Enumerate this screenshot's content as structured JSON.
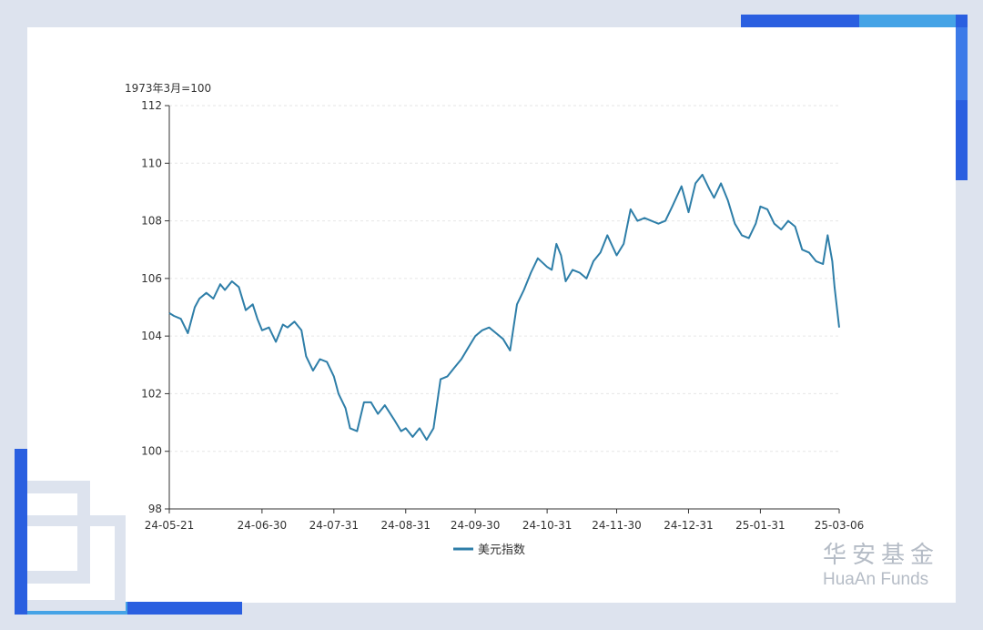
{
  "chart_data": {
    "type": "line",
    "ylabel": "1973年3月=100",
    "ylim": [
      98,
      112
    ],
    "yticks": [
      "98",
      "100",
      "102",
      "104",
      "106",
      "108",
      "110",
      "112"
    ],
    "xticks": [
      "24-05-21",
      "24-06-30",
      "24-07-31",
      "24-08-31",
      "24-09-30",
      "24-10-31",
      "24-11-30",
      "24-12-31",
      "25-01-31",
      "25-03-06"
    ],
    "grid": "horizontal dashed",
    "legend_position": "bottom-center",
    "series": [
      {
        "name": "美元指数",
        "color": "#2e7ea8",
        "x": [
          "2024-05-21",
          "2024-05-23",
          "2024-05-26",
          "2024-05-29",
          "2024-06-01",
          "2024-06-03",
          "2024-06-06",
          "2024-06-09",
          "2024-06-12",
          "2024-06-14",
          "2024-06-17",
          "2024-06-20",
          "2024-06-23",
          "2024-06-26",
          "2024-06-28",
          "2024-06-30",
          "2024-07-03",
          "2024-07-06",
          "2024-07-09",
          "2024-07-11",
          "2024-07-14",
          "2024-07-17",
          "2024-07-19",
          "2024-07-22",
          "2024-07-25",
          "2024-07-28",
          "2024-07-31",
          "2024-08-02",
          "2024-08-05",
          "2024-08-07",
          "2024-08-10",
          "2024-08-13",
          "2024-08-16",
          "2024-08-19",
          "2024-08-22",
          "2024-08-26",
          "2024-08-29",
          "2024-08-31",
          "2024-09-03",
          "2024-09-06",
          "2024-09-09",
          "2024-09-12",
          "2024-09-15",
          "2024-09-18",
          "2024-09-21",
          "2024-09-24",
          "2024-09-27",
          "2024-09-30",
          "2024-10-03",
          "2024-10-06",
          "2024-10-09",
          "2024-10-12",
          "2024-10-15",
          "2024-10-18",
          "2024-10-21",
          "2024-10-24",
          "2024-10-27",
          "2024-10-31",
          "2024-11-02",
          "2024-11-04",
          "2024-11-06",
          "2024-11-08",
          "2024-11-11",
          "2024-11-14",
          "2024-11-17",
          "2024-11-20",
          "2024-11-23",
          "2024-11-26",
          "2024-11-30",
          "2024-12-03",
          "2024-12-06",
          "2024-12-09",
          "2024-12-12",
          "2024-12-15",
          "2024-12-18",
          "2024-12-21",
          "2024-12-24",
          "2024-12-28",
          "2024-12-31",
          "2025-01-03",
          "2025-01-06",
          "2025-01-09",
          "2025-01-11",
          "2025-01-14",
          "2025-01-17",
          "2025-01-20",
          "2025-01-23",
          "2025-01-26",
          "2025-01-29",
          "2025-01-31",
          "2025-02-03",
          "2025-02-06",
          "2025-02-09",
          "2025-02-12",
          "2025-02-15",
          "2025-02-18",
          "2025-02-21",
          "2025-02-24",
          "2025-02-27",
          "2025-03-01",
          "2025-03-03",
          "2025-03-04",
          "2025-03-06"
        ],
        "values": [
          104.8,
          104.7,
          104.6,
          104.1,
          105.0,
          105.3,
          105.5,
          105.3,
          105.8,
          105.6,
          105.9,
          105.7,
          104.9,
          105.1,
          104.6,
          104.2,
          104.3,
          103.8,
          104.4,
          104.3,
          104.5,
          104.2,
          103.3,
          102.8,
          103.2,
          103.1,
          102.6,
          102.0,
          101.5,
          100.8,
          100.7,
          101.7,
          101.7,
          101.3,
          101.6,
          101.1,
          100.7,
          100.8,
          100.5,
          100.8,
          100.4,
          100.8,
          102.5,
          102.6,
          102.9,
          103.2,
          103.6,
          104.0,
          104.2,
          104.3,
          104.1,
          103.9,
          103.5,
          105.1,
          105.6,
          106.2,
          106.7,
          106.4,
          106.3,
          107.2,
          106.8,
          105.9,
          106.3,
          106.2,
          106.0,
          106.6,
          106.9,
          107.5,
          106.8,
          107.2,
          108.4,
          108.0,
          108.1,
          108.0,
          107.9,
          108.0,
          108.5,
          109.2,
          108.3,
          109.3,
          109.6,
          109.1,
          108.8,
          109.3,
          108.7,
          107.9,
          107.5,
          107.4,
          107.9,
          108.5,
          108.4,
          107.9,
          107.7,
          108.0,
          107.8,
          107.0,
          106.9,
          106.6,
          106.5,
          107.5,
          106.6,
          105.7,
          104.3
        ]
      }
    ]
  },
  "brand": {
    "cn": "华安基金",
    "en": "HuaAn Funds"
  },
  "colors": {
    "accent_dark": "#2a5fe0",
    "accent_light": "#45a3e6",
    "frame": "#dde3ee"
  }
}
